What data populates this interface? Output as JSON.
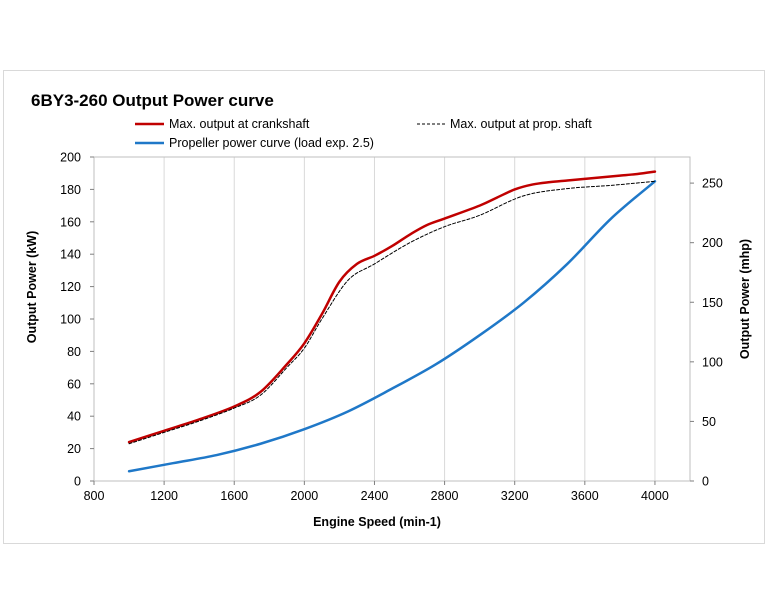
{
  "chart_data": {
    "type": "line",
    "title": "6BY3-260 Output Power curve",
    "xlabel": "Engine Speed (min-1)",
    "ylabel": "Output Power (kW)",
    "y2label": "Output Power (mhp)",
    "xlim": [
      800,
      4200
    ],
    "ylim": [
      0,
      200
    ],
    "y2lim": [
      0,
      271.9
    ],
    "xticks": [
      800,
      1200,
      1600,
      2000,
      2400,
      2800,
      3200,
      3600,
      4000
    ],
    "yticks": [
      0,
      20,
      40,
      60,
      80,
      100,
      120,
      140,
      160,
      180,
      200
    ],
    "y2ticks": [
      0,
      50,
      100,
      150,
      200,
      250
    ],
    "grid": "vertical",
    "series": [
      {
        "name": "Max. output at crankshaft",
        "color": "#c00000",
        "style": "solid",
        "x": [
          1000,
          1200,
          1400,
          1600,
          1750,
          1900,
          2000,
          2100,
          2200,
          2300,
          2400,
          2500,
          2600,
          2700,
          2800,
          3000,
          3100,
          3200,
          3300,
          3400,
          3500,
          3600,
          3700,
          3800,
          3900,
          4000
        ],
        "y": [
          24,
          31,
          38,
          46,
          55,
          72,
          85,
          103,
          123,
          134,
          139,
          145,
          152,
          158,
          162,
          170,
          175,
          180,
          183,
          184.5,
          185.5,
          186.5,
          187.5,
          188.5,
          189.5,
          191
        ]
      },
      {
        "name": "Max. output at prop. shaft",
        "color": "#000000",
        "style": "dashed",
        "x": [
          1000,
          1200,
          1400,
          1600,
          1750,
          1900,
          2000,
          2100,
          2250,
          2400,
          2600,
          2800,
          3000,
          3250,
          3500,
          3750,
          4000
        ],
        "y": [
          23,
          30,
          37,
          45,
          53,
          70,
          82,
          100,
          124,
          134,
          147,
          157,
          164,
          176,
          180.5,
          182.5,
          185
        ]
      },
      {
        "name": "Propeller power curve (load exp. 2.5)",
        "color": "#1f78c8",
        "style": "solid",
        "x": [
          1000,
          1250,
          1500,
          1750,
          2000,
          2250,
          2500,
          2750,
          3000,
          3250,
          3500,
          3750,
          4000
        ],
        "y": [
          6,
          11,
          16,
          23,
          32,
          43,
          57,
          72,
          90,
          110,
          134,
          162,
          185
        ]
      }
    ]
  }
}
